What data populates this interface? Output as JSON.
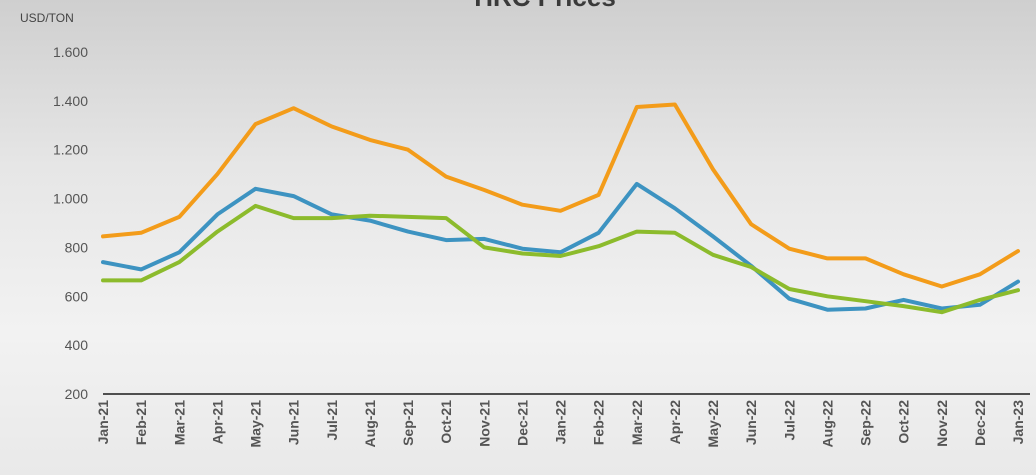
{
  "chart_data": {
    "type": "line",
    "title": "HRC Prices",
    "ylabel": "USD/TON",
    "xlabel": "",
    "ylim": [
      200,
      1600
    ],
    "yticks": [
      "200",
      "400",
      "600",
      "800",
      "1.000",
      "1.200",
      "1.400",
      "1.600"
    ],
    "ytick_values": [
      200,
      400,
      600,
      800,
      1000,
      1200,
      1400,
      1600
    ],
    "categories": [
      "Jan-21",
      "Feb-21",
      "Mar-21",
      "Apr-21",
      "May-21",
      "Jun-21",
      "Jul-21",
      "Aug-21",
      "Sep-21",
      "Oct-21",
      "Nov-21",
      "Dec-21",
      "Jan-22",
      "Feb-22",
      "Mar-22",
      "Apr-22",
      "May-22",
      "Jun-22",
      "Jul-22",
      "Aug-22",
      "Sep-22",
      "Oct-22",
      "Nov-22",
      "Dec-22",
      "Jan-23"
    ],
    "grid": false,
    "legend": "none",
    "series": [
      {
        "color": "#f39c1a",
        "values": [
          845,
          860,
          925,
          1100,
          1305,
          1370,
          1295,
          1240,
          1200,
          1090,
          1035,
          975,
          950,
          1015,
          1375,
          1385,
          1120,
          895,
          795,
          755,
          755,
          690,
          640,
          690,
          785
        ]
      },
      {
        "color": "#3d93c1",
        "values": [
          740,
          710,
          780,
          935,
          1040,
          1010,
          935,
          910,
          865,
          830,
          835,
          795,
          780,
          860,
          1060,
          960,
          845,
          725,
          590,
          545,
          550,
          585,
          550,
          565,
          660
        ]
      },
      {
        "color": "#8cbb2c",
        "values": [
          665,
          665,
          740,
          865,
          970,
          920,
          920,
          930,
          925,
          920,
          800,
          775,
          765,
          805,
          865,
          860,
          770,
          720,
          630,
          600,
          580,
          560,
          535,
          585,
          625
        ]
      }
    ]
  }
}
